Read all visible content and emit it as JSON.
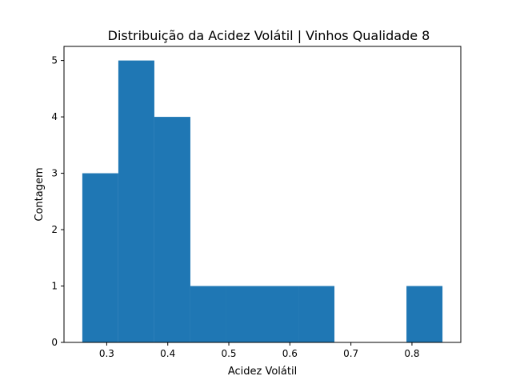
{
  "chart_data": {
    "type": "bar",
    "subtype": "histogram",
    "title": "Distribuição da Acidez Volátil | Vinhos Qualidade 8",
    "xlabel": "Acidez Volátil",
    "ylabel": "Contagem",
    "xlim": [
      0.23,
      0.88
    ],
    "ylim": [
      0,
      5.25
    ],
    "xticks": [
      0.3,
      0.4,
      0.5,
      0.6,
      0.7,
      0.8
    ],
    "yticks": [
      0,
      1,
      2,
      3,
      4,
      5
    ],
    "bin_edges": [
      0.26,
      0.319,
      0.378,
      0.437,
      0.496,
      0.555,
      0.614,
      0.673,
      0.732,
      0.791,
      0.85
    ],
    "counts": [
      3,
      5,
      4,
      1,
      1,
      1,
      1,
      0,
      0,
      1
    ],
    "bar_color": "#1f77b4",
    "grid": false,
    "legend": "none"
  }
}
